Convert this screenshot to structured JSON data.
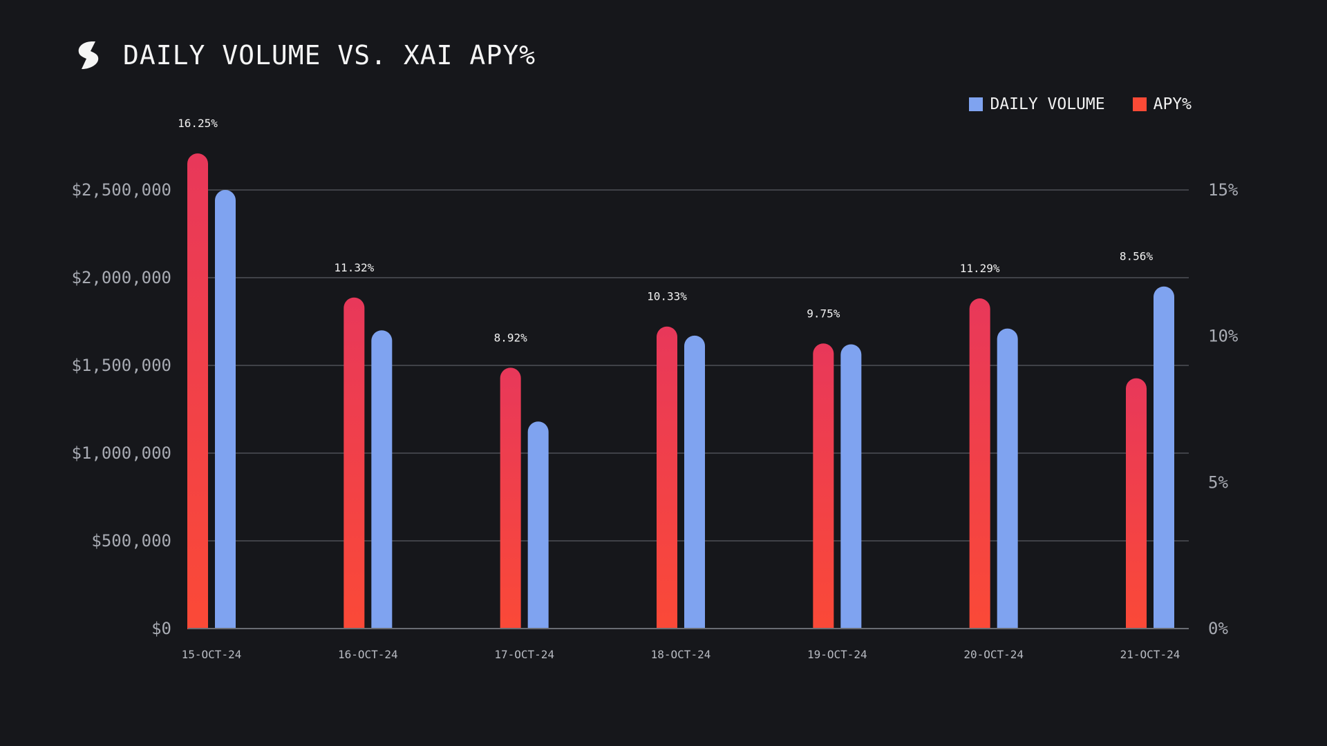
{
  "header": {
    "title": "DAILY VOLUME VS. XAI APY%",
    "logo_icon": "stylized-s-logo-icon"
  },
  "legend": {
    "items": [
      {
        "label": "DAILY VOLUME",
        "color": "#7fa3f0"
      },
      {
        "label": "APY%",
        "color": "#fb4a36"
      }
    ]
  },
  "chart_data": {
    "type": "bar",
    "title": "DAILY VOLUME VS. XAI APY%",
    "categories": [
      "15-OCT-24",
      "16-OCT-24",
      "17-OCT-24",
      "18-OCT-24",
      "19-OCT-24",
      "20-OCT-24",
      "21-OCT-24"
    ],
    "series": [
      {
        "name": "APY%",
        "axis": "right",
        "values": [
          16.25,
          11.32,
          8.92,
          10.33,
          9.75,
          11.29,
          8.56
        ],
        "labels": [
          "16.25%",
          "11.32%",
          "8.92%",
          "10.33%",
          "9.75%",
          "11.29%",
          "8.56%"
        ],
        "color_top": "#e8385a",
        "color_bottom": "#fb4a36"
      },
      {
        "name": "DAILY VOLUME",
        "axis": "left",
        "values": [
          2500000,
          1700000,
          1180000,
          1670000,
          1620000,
          1710000,
          1950000
        ],
        "color": "#7fa3f0"
      }
    ],
    "left_axis": {
      "ticks": [
        {
          "value": 0,
          "label": "$0"
        },
        {
          "value": 500000,
          "label": "$500,000"
        },
        {
          "value": 1000000,
          "label": "$1,000,000"
        },
        {
          "value": 1500000,
          "label": "$1,500,000"
        },
        {
          "value": 2000000,
          "label": "$2,000,000"
        },
        {
          "value": 2500000,
          "label": "$2,500,000"
        }
      ],
      "ylim": [
        0,
        2500000
      ]
    },
    "right_axis": {
      "ticks": [
        {
          "value": 0,
          "label": "0%"
        },
        {
          "value": 5,
          "label": "5%"
        },
        {
          "value": 10,
          "label": "10%"
        },
        {
          "value": 15,
          "label": "15%"
        }
      ],
      "ylim": [
        0,
        15
      ]
    },
    "grid": true,
    "legend_position": "top-right",
    "colors": {
      "grid": "#5a5c63",
      "axis": "#6a6c73"
    }
  }
}
